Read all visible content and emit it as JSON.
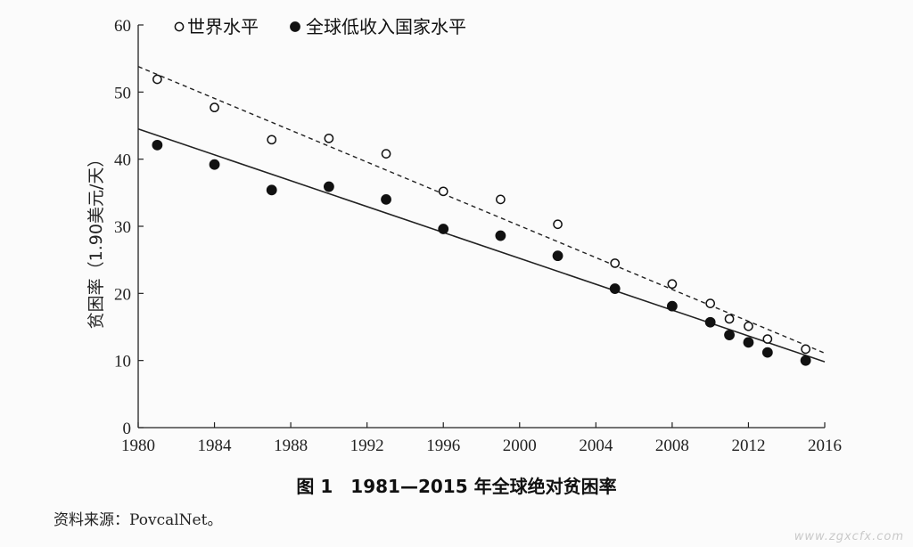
{
  "chart_data": {
    "type": "scatter",
    "title": "图 1　1981—2015 年全球绝对贫困率",
    "xlabel": "",
    "ylabel": "贫困率（1.90美元/天）",
    "xlim": [
      1980,
      2016
    ],
    "ylim": [
      0,
      60
    ],
    "x_ticks": [
      "1980",
      "1984",
      "1988",
      "1992",
      "1996",
      "2000",
      "2004",
      "2008",
      "2012",
      "2016"
    ],
    "y_ticks": [
      "0",
      "10",
      "20",
      "30",
      "40",
      "50",
      "60"
    ],
    "grid": false,
    "legend_position": "top-left",
    "series": [
      {
        "name": "世界水平",
        "marker": "hollow-circle",
        "x": [
          1981,
          1984,
          1987,
          1990,
          1993,
          1996,
          1999,
          2002,
          2005,
          2008,
          2010,
          2011,
          2012,
          2013,
          2015
        ],
        "y": [
          51.9,
          47.7,
          42.9,
          43.1,
          40.8,
          35.2,
          34.0,
          30.3,
          24.5,
          21.4,
          18.5,
          16.2,
          15.1,
          13.2,
          11.7
        ],
        "trend": {
          "style": "dashed",
          "x": [
            1980,
            2016
          ],
          "y": [
            53.8,
            11.1
          ]
        }
      },
      {
        "name": "全球低收入国家水平",
        "marker": "filled-circle",
        "x": [
          1981,
          1984,
          1987,
          1990,
          1993,
          1996,
          1999,
          2002,
          2005,
          2008,
          2010,
          2011,
          2012,
          2013,
          2015
        ],
        "y": [
          42.1,
          39.2,
          35.4,
          35.9,
          34.0,
          29.6,
          28.6,
          25.6,
          20.7,
          18.1,
          15.7,
          13.8,
          12.7,
          11.2,
          10.0
        ],
        "trend": {
          "style": "solid",
          "x": [
            1980,
            2016
          ],
          "y": [
            44.5,
            9.8
          ]
        }
      }
    ]
  },
  "caption": "图 1　1981—2015 年全球绝对贫困率",
  "source": "资料来源：PovcalNet。",
  "watermark": "www.zgxcfx.com"
}
